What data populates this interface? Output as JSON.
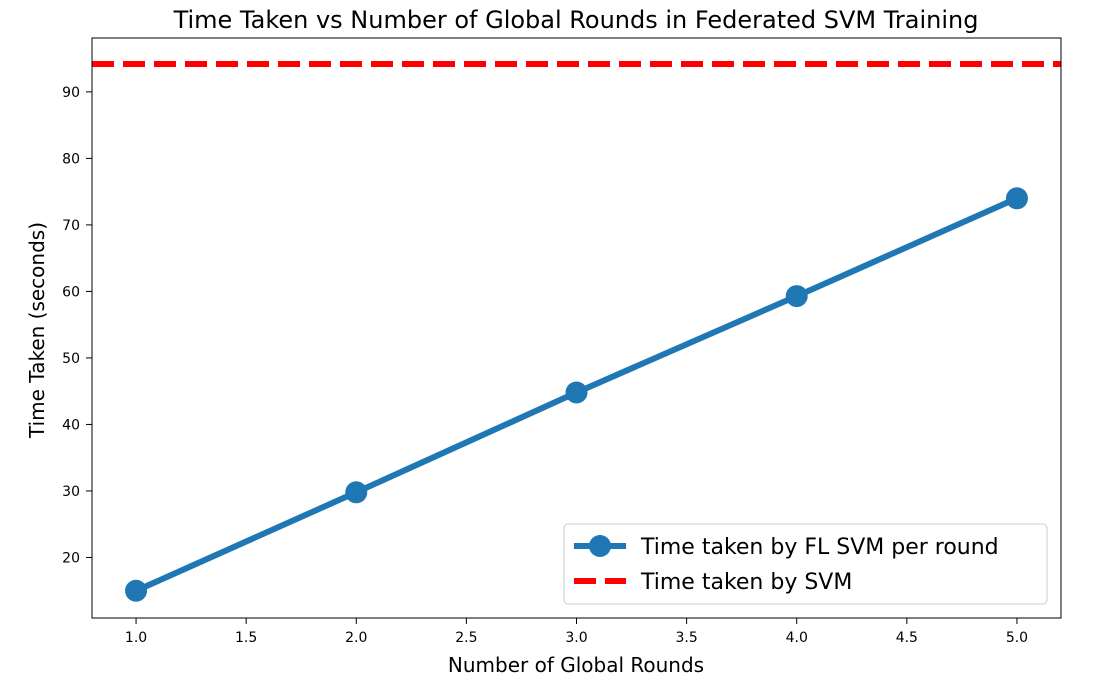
{
  "chart_data": {
    "type": "line",
    "title": "Time Taken vs Number of Global Rounds in Federated SVM Training",
    "xlabel": "Number of Global Rounds",
    "ylabel": "Time Taken (seconds)",
    "xlim": [
      0.8,
      5.2
    ],
    "ylim": [
      10.9,
      98.1
    ],
    "xticks": [
      "1.0",
      "1.5",
      "2.0",
      "2.5",
      "3.0",
      "3.5",
      "4.0",
      "4.5",
      "5.0"
    ],
    "yticks": [
      "20",
      "30",
      "40",
      "50",
      "60",
      "70",
      "80",
      "90"
    ],
    "grid": false,
    "legend_position": "lower-right",
    "series": [
      {
        "name": "Time taken by FL SVM per round",
        "style": "solid-line-with-circle-markers",
        "color": "#1f77b4",
        "x": [
          1,
          2,
          3,
          4,
          5
        ],
        "y": [
          15.0,
          29.8,
          44.8,
          59.3,
          74.0
        ]
      }
    ],
    "reference_lines": [
      {
        "name": "Time taken by SVM",
        "orientation": "horizontal",
        "style": "dashed",
        "color": "#ff0000",
        "y": 94.2
      }
    ]
  }
}
